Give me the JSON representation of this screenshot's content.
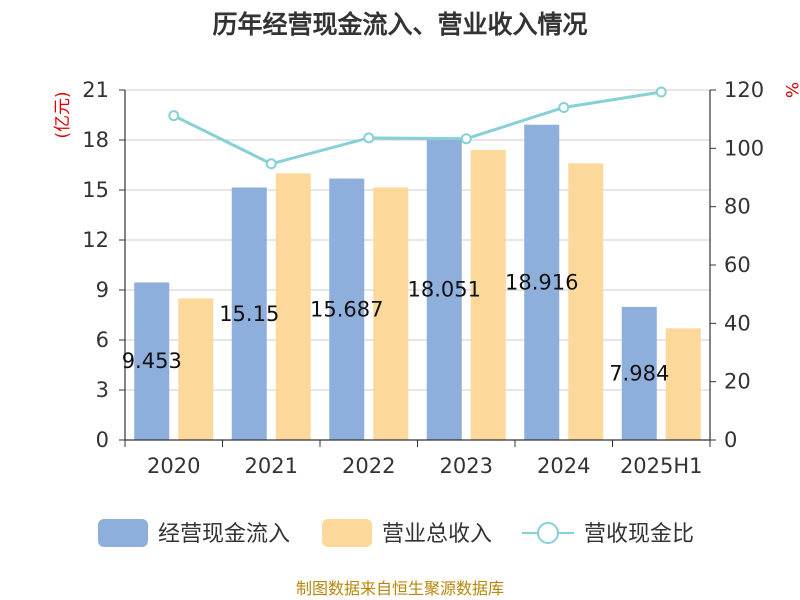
{
  "title": "历年经营现金流入、营业收入情况",
  "source_note": "制图数据来自恒生聚源数据库",
  "chart_data": {
    "type": "bar",
    "categories": [
      "2020",
      "2021",
      "2022",
      "2023",
      "2024",
      "2025H1"
    ],
    "series": [
      {
        "name": "经营现金流入",
        "type": "bar",
        "axis": "left",
        "color": "#8eaedb",
        "values": [
          9.453,
          15.15,
          15.687,
          18.051,
          18.916,
          7.984
        ],
        "labels": [
          "9.453",
          "15.15",
          "15.687",
          "18.051",
          "18.916",
          "7.984"
        ]
      },
      {
        "name": "营业总收入",
        "type": "bar",
        "axis": "left",
        "color": "#fdd89b",
        "values": [
          8.5,
          16.0,
          15.15,
          17.4,
          16.6,
          6.7
        ]
      },
      {
        "name": "营收现金比",
        "type": "line",
        "axis": "right",
        "color": "#86d0d6",
        "values": [
          111.2,
          94.7,
          103.6,
          103.3,
          114.0,
          119.3
        ]
      }
    ],
    "left_axis": {
      "unit": "(亿元)",
      "min": 0,
      "max": 21,
      "ticks": [
        "0",
        "3",
        "6",
        "9",
        "12",
        "15",
        "18",
        "21"
      ]
    },
    "right_axis": {
      "unit": "%",
      "min": 0,
      "max": 120,
      "ticks": [
        "0",
        "20",
        "40",
        "60",
        "80",
        "100",
        "120"
      ]
    },
    "grid": true,
    "legend_position": "bottom"
  }
}
